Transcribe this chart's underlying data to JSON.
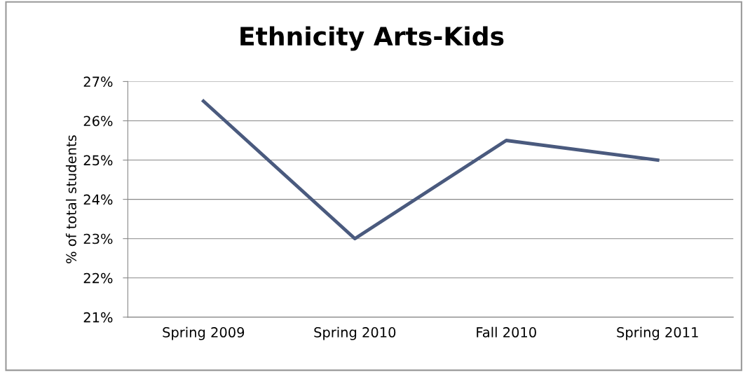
{
  "chart_data": {
    "type": "line",
    "title": "Ethnicity Arts-Kids",
    "ylabel": "% of total students",
    "categories": [
      "Spring 2009",
      "Spring 2010",
      "Fall 2010",
      "Spring 2011"
    ],
    "series": [
      {
        "color": "#4a5a7e",
        "values": [
          26.5,
          23.0,
          25.5,
          25.0
        ]
      }
    ],
    "ylim": [
      21,
      27
    ],
    "yticks": [
      {
        "value": 21,
        "label": "21%"
      },
      {
        "value": 22,
        "label": "22%"
      },
      {
        "value": 23,
        "label": "23%"
      },
      {
        "value": 24,
        "label": "24%"
      },
      {
        "value": 25,
        "label": "25%"
      },
      {
        "value": 26,
        "label": "26%"
      },
      {
        "value": 27,
        "label": "27%"
      }
    ],
    "grid": "y",
    "marker": "none",
    "line_style": "solid"
  }
}
